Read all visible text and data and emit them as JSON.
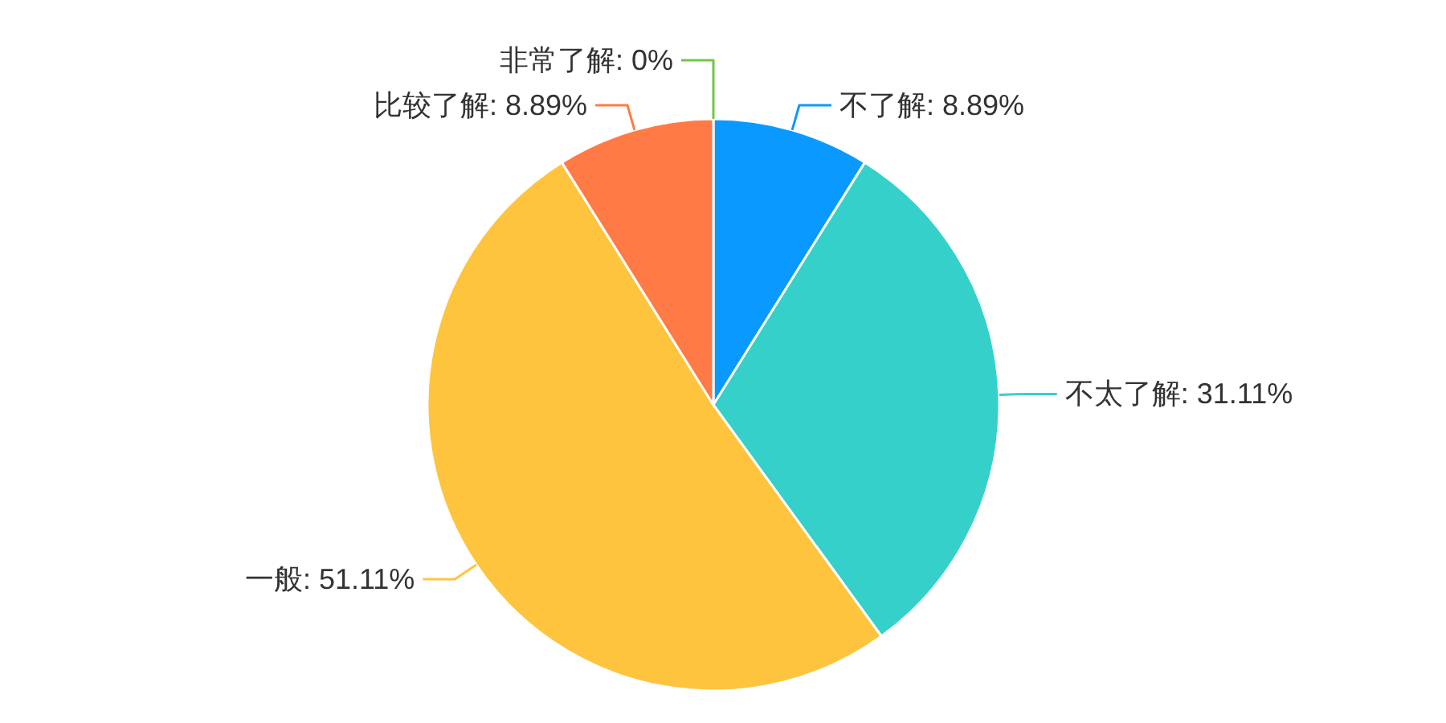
{
  "chart_data": {
    "type": "pie",
    "categories": [
      "不了解",
      "不太了解",
      "一般",
      "比较了解",
      "非常了解"
    ],
    "values": [
      8.89,
      31.11,
      51.11,
      8.89,
      0
    ],
    "value_labels": [
      ": 8.89%",
      ": 31.11%",
      ": 51.11%",
      ": 8.89%",
      ": 0%"
    ],
    "colors": [
      "#0a99ff",
      "#36d0cb",
      "#ffc43d",
      "#ff7a45",
      "#73c646"
    ]
  }
}
